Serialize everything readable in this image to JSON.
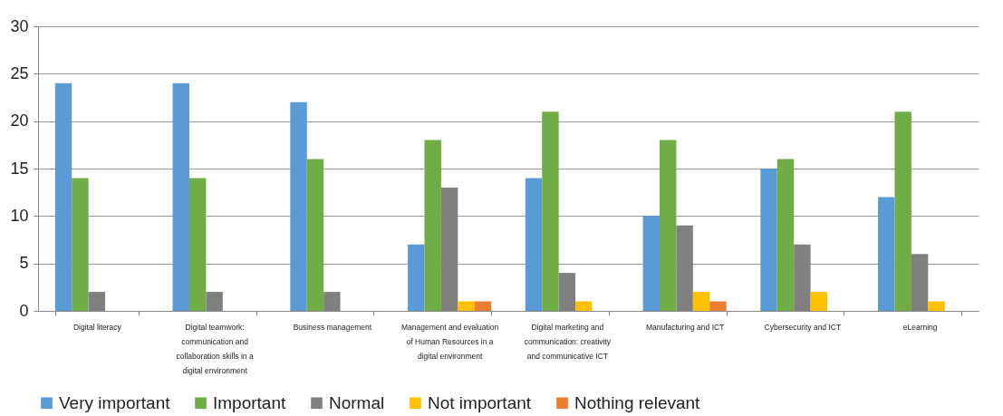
{
  "chart_data": {
    "type": "bar",
    "categories": [
      "Digital literacy",
      "Digital teamwork: communication and collaboration skills in a digital environment",
      "Business management",
      "Management and evaluation of Human Resources in a digital environment",
      "Digital marketing and communication: creativity and communicative ICT",
      "Manufacturing and ICT",
      "Cybersecurity and ICT",
      "eLearning"
    ],
    "series": [
      {
        "name": "Very important",
        "color": "#5b9bd5",
        "values": [
          24,
          24,
          22,
          7,
          14,
          10,
          15,
          12
        ]
      },
      {
        "name": "Important",
        "color": "#70ad47",
        "values": [
          14,
          14,
          16,
          18,
          21,
          18,
          16,
          21
        ]
      },
      {
        "name": "Normal",
        "color": "#808080",
        "values": [
          2,
          2,
          2,
          13,
          4,
          9,
          7,
          6
        ]
      },
      {
        "name": "Not important",
        "color": "#ffc000",
        "values": [
          0,
          0,
          0,
          1,
          1,
          2,
          2,
          1
        ]
      },
      {
        "name": "Nothing relevant",
        "color": "#ed7d31",
        "values": [
          0,
          0,
          0,
          1,
          0,
          1,
          0,
          0
        ]
      }
    ],
    "ylim": [
      0,
      30
    ],
    "yticks": [
      0,
      5,
      10,
      15,
      20,
      25,
      30
    ],
    "grid": "y",
    "legend": "bottom"
  }
}
